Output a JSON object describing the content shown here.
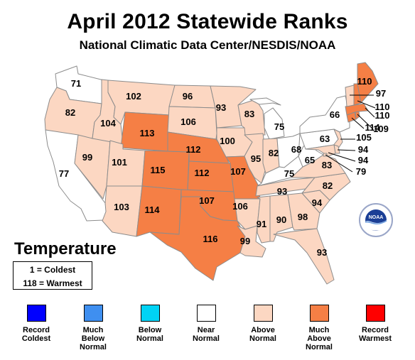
{
  "title": "April 2012 Statewide Ranks",
  "subtitle": "National Climatic Data Center/NESDIS/NOAA",
  "legend_title": "Temperature",
  "key_line1": "1 = Coldest",
  "key_line2": "118 = Warmest",
  "colors": {
    "near_normal": "#ffffff",
    "above_normal": "#fcd7c2",
    "much_above_normal": "#f57f45",
    "record_warmest": "#ff0000",
    "record_coldest": "#0000ff",
    "much_below_normal": "#3f8ff0",
    "below_normal": "#00d3f5",
    "border": "#8c8c8c"
  },
  "legend": [
    {
      "label_line1": "Record",
      "label_line2": "Coldest",
      "label_line3": "",
      "color": "#0000ff"
    },
    {
      "label_line1": "Much",
      "label_line2": "Below",
      "label_line3": "Normal",
      "color": "#3f8ff0"
    },
    {
      "label_line1": "Below",
      "label_line2": "Normal",
      "label_line3": "",
      "color": "#00d3f5"
    },
    {
      "label_line1": "Near",
      "label_line2": "Normal",
      "label_line3": "",
      "color": "#ffffff"
    },
    {
      "label_line1": "Above",
      "label_line2": "Normal",
      "label_line3": "",
      "color": "#fcd7c2"
    },
    {
      "label_line1": "Much",
      "label_line2": "Above",
      "label_line3": "Normal",
      "color": "#f57f45"
    },
    {
      "label_line1": "Record",
      "label_line2": "Warmest",
      "label_line3": "",
      "color": "#ff0000"
    }
  ],
  "states": {
    "WA": {
      "rank": "71",
      "category": "near"
    },
    "OR": {
      "rank": "82",
      "category": "above"
    },
    "CA": {
      "rank": "77",
      "category": "near"
    },
    "NV": {
      "rank": "99",
      "category": "above"
    },
    "ID": {
      "rank": "104",
      "category": "above"
    },
    "MT": {
      "rank": "102",
      "category": "above"
    },
    "WY": {
      "rank": "113",
      "category": "much_above"
    },
    "UT": {
      "rank": "101",
      "category": "above"
    },
    "AZ": {
      "rank": "103",
      "category": "above"
    },
    "CO": {
      "rank": "115",
      "category": "much_above"
    },
    "NM": {
      "rank": "114",
      "category": "much_above"
    },
    "ND": {
      "rank": "96",
      "category": "above"
    },
    "SD": {
      "rank": "106",
      "category": "above"
    },
    "NE": {
      "rank": "112",
      "category": "much_above"
    },
    "KS": {
      "rank": "112",
      "category": "much_above"
    },
    "OK": {
      "rank": "107",
      "category": "much_above"
    },
    "TX": {
      "rank": "116",
      "category": "much_above"
    },
    "MN": {
      "rank": "93",
      "category": "above"
    },
    "IA": {
      "rank": "100",
      "category": "above"
    },
    "MO": {
      "rank": "107",
      "category": "much_above"
    },
    "AR": {
      "rank": "106",
      "category": "above"
    },
    "LA": {
      "rank": "99",
      "category": "above"
    },
    "WI": {
      "rank": "83",
      "category": "above"
    },
    "IL": {
      "rank": "95",
      "category": "above"
    },
    "MI": {
      "rank": "75",
      "category": "near"
    },
    "IN": {
      "rank": "82",
      "category": "above"
    },
    "OH": {
      "rank": "68",
      "category": "near"
    },
    "KY": {
      "rank": "75",
      "category": "near"
    },
    "TN": {
      "rank": "93",
      "category": "above"
    },
    "MS": {
      "rank": "91",
      "category": "above"
    },
    "AL": {
      "rank": "90",
      "category": "above"
    },
    "GA": {
      "rank": "98",
      "category": "above"
    },
    "FL": {
      "rank": "93",
      "category": "above"
    },
    "SC": {
      "rank": "94",
      "category": "above"
    },
    "NC": {
      "rank": "82",
      "category": "above"
    },
    "VA": {
      "rank": "83",
      "category": "above"
    },
    "WV": {
      "rank": "65",
      "category": "near"
    },
    "PA": {
      "rank": "63",
      "category": "near"
    },
    "NY": {
      "rank": "66",
      "category": "near"
    },
    "NJ": {
      "rank": "105",
      "category": "above"
    },
    "DE": {
      "rank": "94",
      "category": "above"
    },
    "MD": {
      "rank": "94",
      "category": "above"
    },
    "DC": {
      "rank": "79",
      "category": "above"
    },
    "CT": {
      "rank": "114",
      "category": "much_above"
    },
    "RI": {
      "rank": "109",
      "category": "much_above"
    },
    "MA": {
      "rank": "110",
      "category": "much_above"
    },
    "NH": {
      "rank": "110",
      "category": "much_above"
    },
    "VT": {
      "rank": "97",
      "category": "above"
    },
    "ME": {
      "rank": "110",
      "category": "much_above"
    }
  }
}
